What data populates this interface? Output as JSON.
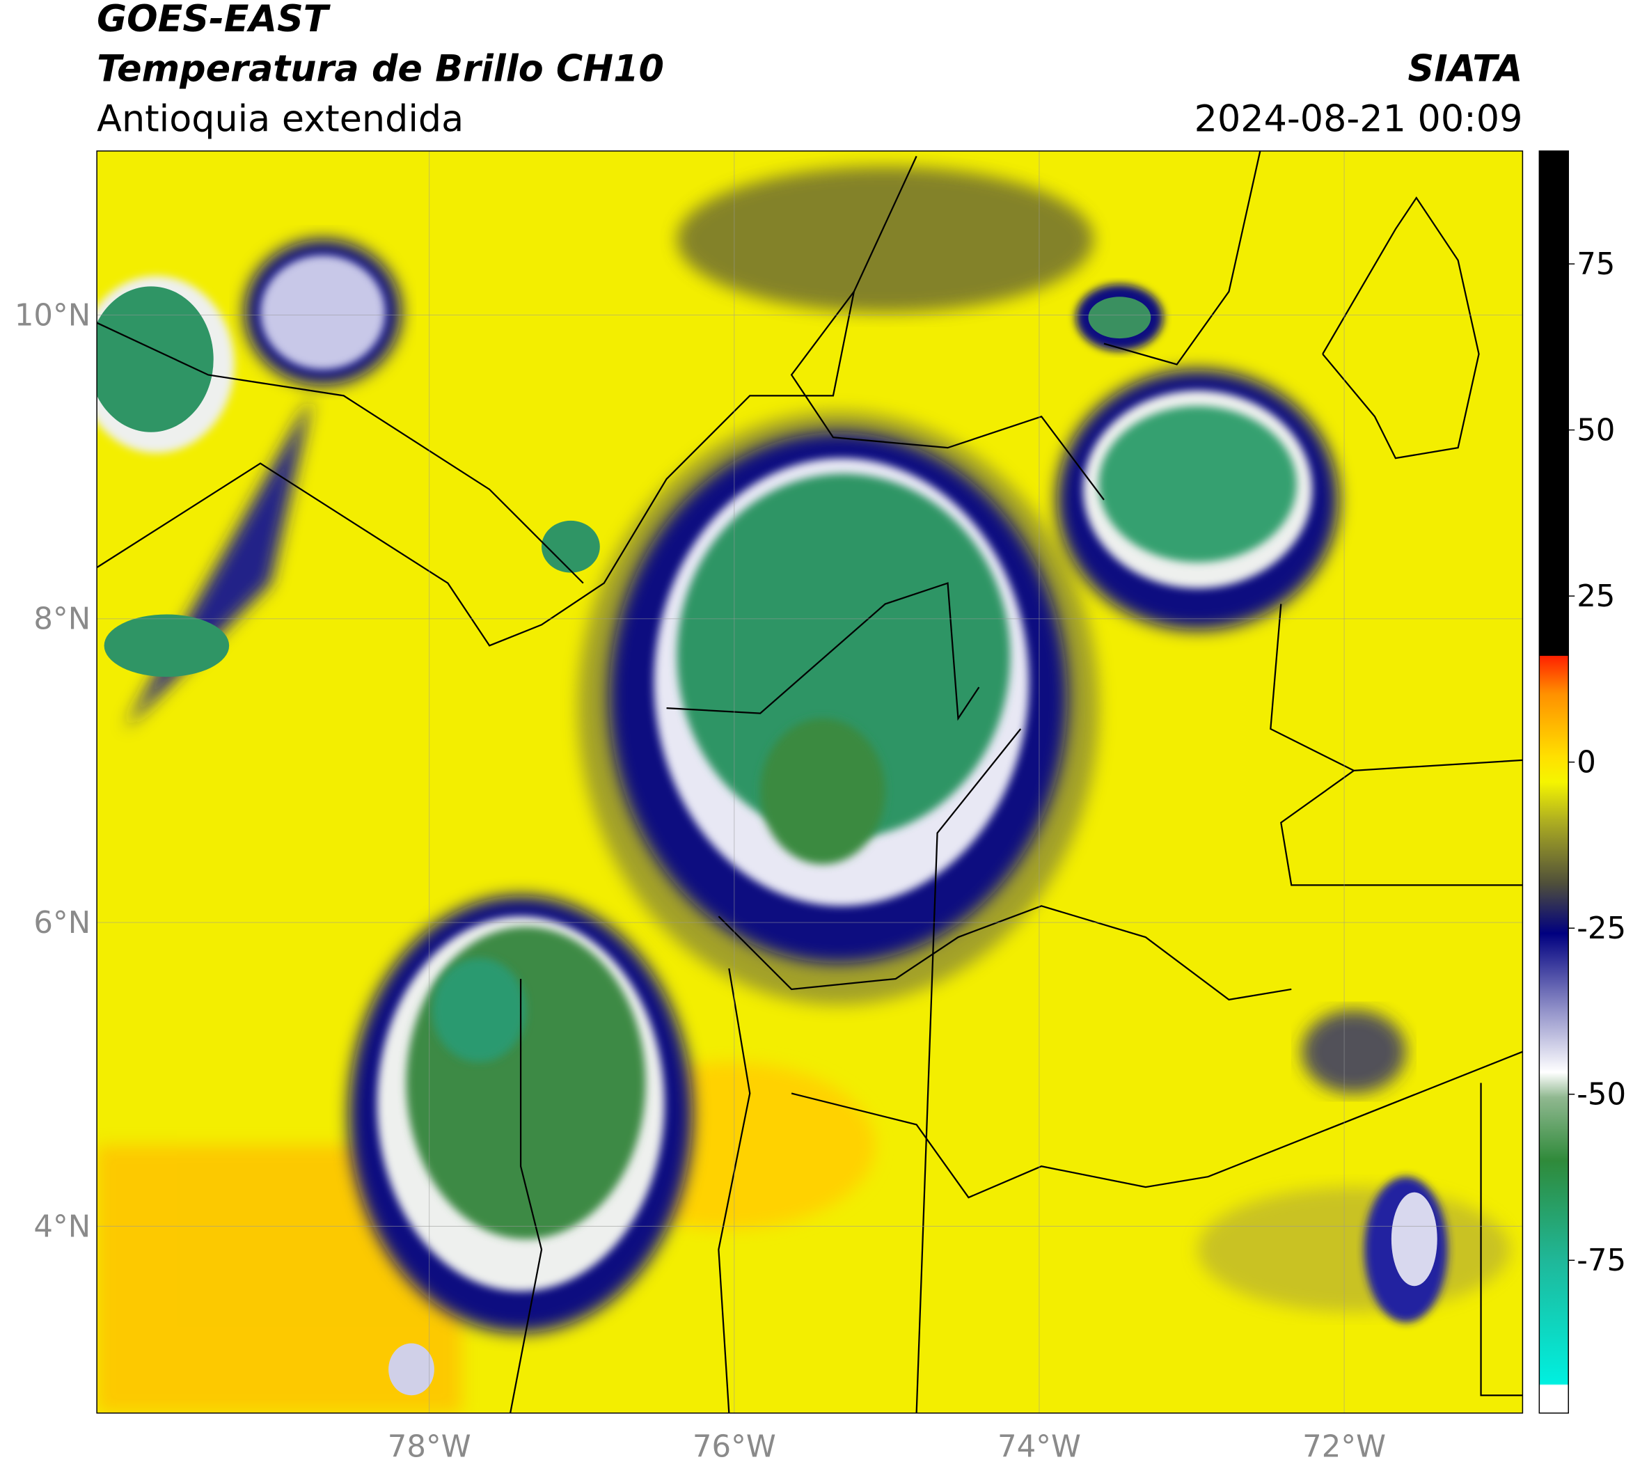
{
  "header": {
    "title": "GOES-EAST",
    "subtitle": "Temperatura de Brillo CH10",
    "region": "Antioquia extendida",
    "source": "SIATA",
    "datetime": "2024-08-21 00:09"
  },
  "map": {
    "xlim": [
      -80.18,
      -70.83
    ],
    "ylim": [
      2.77,
      11.08
    ],
    "grid": true,
    "xticks": [
      {
        "value": -78,
        "label": "78°W"
      },
      {
        "value": -76,
        "label": "76°W"
      },
      {
        "value": -74,
        "label": "74°W"
      },
      {
        "value": -72,
        "label": "72°W"
      }
    ],
    "yticks": [
      {
        "value": 10,
        "label": "10°N"
      },
      {
        "value": 8,
        "label": "8°N"
      },
      {
        "value": 6,
        "label": "6°N"
      },
      {
        "value": 4,
        "label": "4°N"
      }
    ]
  },
  "colorbar": {
    "lim": [
      -98,
      92
    ],
    "ticks": [
      75,
      50,
      25,
      0,
      -25,
      -50,
      -75
    ]
  }
}
